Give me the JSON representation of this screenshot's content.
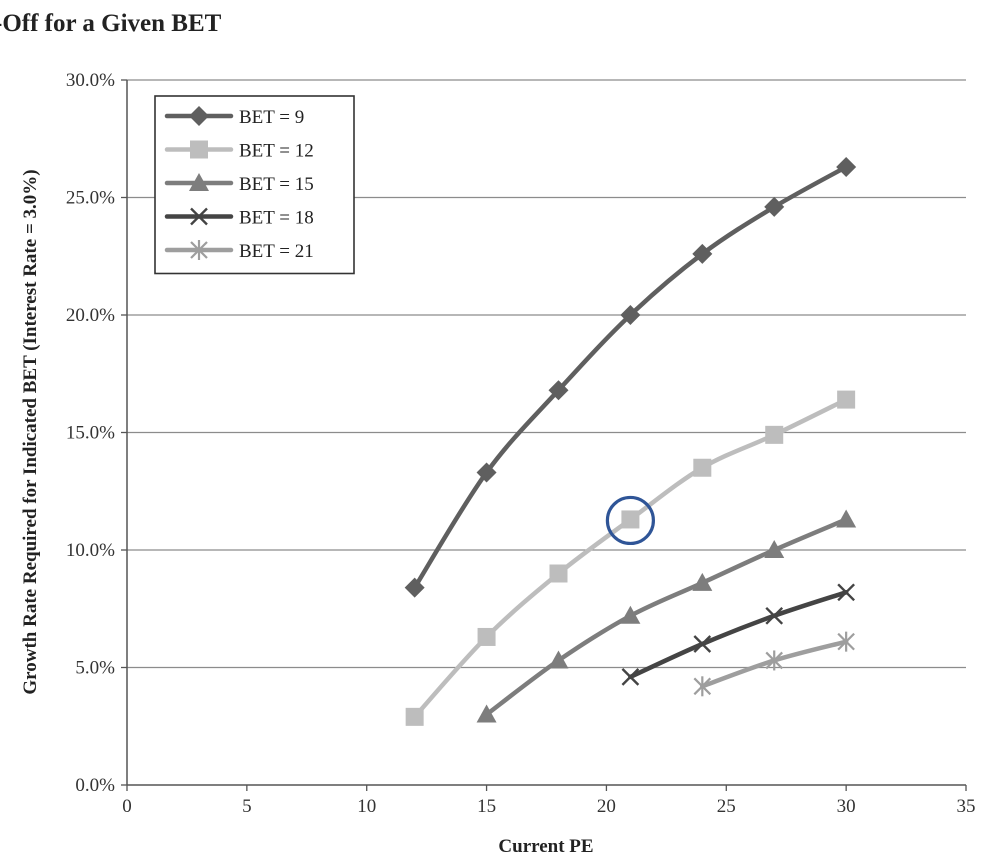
{
  "chart_data": {
    "type": "line",
    "title": "-Off for a Given BET",
    "xlabel": "Current PE",
    "ylabel": "Growth Rate Required for Indicated BET (Interest Rate = 3.0%)",
    "xlim": [
      0,
      35
    ],
    "ylim": [
      0,
      30
    ],
    "x_ticks": [
      0,
      5,
      10,
      15,
      20,
      25,
      30,
      35
    ],
    "y_ticks": [
      0,
      5,
      10,
      15,
      20,
      25,
      30
    ],
    "y_tick_labels": [
      "0.0%",
      "5.0%",
      "10.0%",
      "15.0%",
      "20.0%",
      "25.0%",
      "30.0%"
    ],
    "grid": "horizontal",
    "legend_position": "top-left",
    "series": [
      {
        "name": "BET = 9",
        "color": "#5f5f5f",
        "marker": "diamond",
        "x": [
          12,
          15,
          18,
          21,
          24,
          27,
          30
        ],
        "y": [
          8.4,
          13.3,
          16.8,
          20.0,
          22.6,
          24.6,
          26.3
        ]
      },
      {
        "name": "BET = 12",
        "color": "#bdbdbd",
        "marker": "square",
        "x": [
          12,
          15,
          18,
          21,
          24,
          27,
          30
        ],
        "y": [
          2.9,
          6.3,
          9.0,
          11.3,
          13.5,
          14.9,
          16.4
        ]
      },
      {
        "name": "BET = 15",
        "color": "#7d7d7d",
        "marker": "triangle",
        "x": [
          15,
          18,
          21,
          24,
          27,
          30
        ],
        "y": [
          3.0,
          5.3,
          7.2,
          8.6,
          10.0,
          11.3
        ]
      },
      {
        "name": "BET = 18",
        "color": "#444444",
        "marker": "x",
        "x": [
          21,
          24,
          27,
          30
        ],
        "y": [
          4.6,
          6.0,
          7.2,
          8.2
        ]
      },
      {
        "name": "BET = 21",
        "color": "#9e9e9e",
        "marker": "star",
        "x": [
          24,
          27,
          30
        ],
        "y": [
          4.2,
          5.3,
          6.1
        ]
      }
    ],
    "annotations": [
      {
        "type": "circle",
        "x": 21,
        "y": 11.3,
        "color": "#2f5597"
      }
    ]
  }
}
